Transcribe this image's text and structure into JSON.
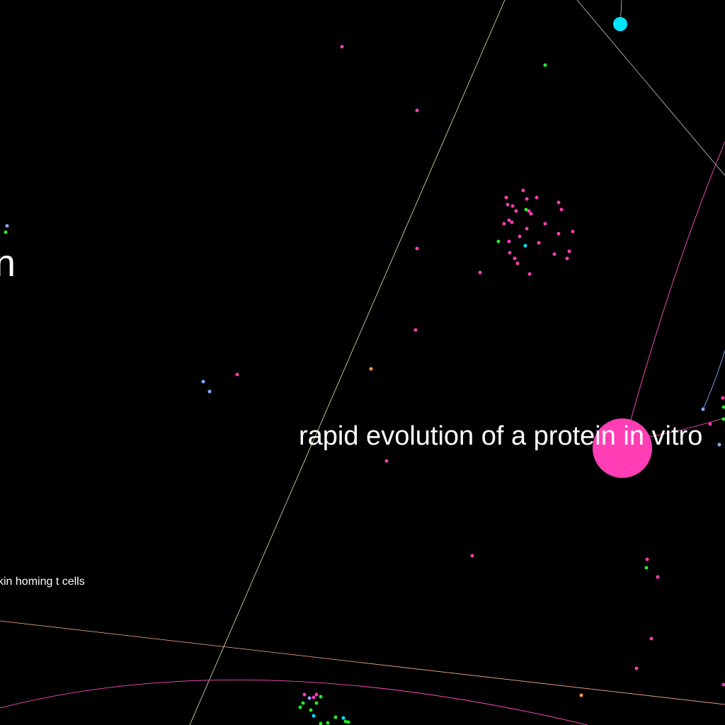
{
  "labels": {
    "main": "rapid evolution of a protein in vitro",
    "left_fragment": "n",
    "small": "kin homing t cells"
  },
  "colors": {
    "background": "#000000",
    "pink": "#ff3eb5",
    "green": "#22ee22",
    "blue": "#88aaff",
    "cyan": "#00e5ff",
    "orange": "#ff9944",
    "edge_pale_yellow": "#e8e4a8",
    "edge_gray": "#c8c8c8",
    "edge_salmon": "#ffb08a",
    "edge_pink": "#ff4fc0"
  }
}
